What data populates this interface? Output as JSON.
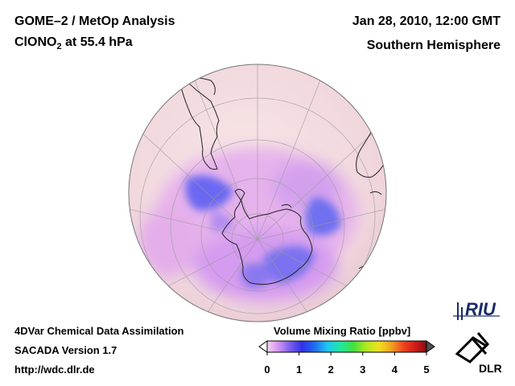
{
  "header": {
    "title": "GOME–2 / MetOp Analysis",
    "species": "ClONO",
    "species_sub": "2",
    "level": "at 55.4 hPa",
    "datetime": "Jan 28, 2010, 12:00 GMT",
    "region": "Southern Hemisphere"
  },
  "footer": {
    "line1": "4DVar Chemical Data Assimilation",
    "line2": "SACADA Version 1.7",
    "line3": "http://wdc.dlr.de"
  },
  "colorbar": {
    "title": "Volume Mixing Ratio [ppbv]",
    "ticks": [
      "0",
      "1",
      "2",
      "3",
      "4",
      "5"
    ],
    "min": 0,
    "max": 5
  },
  "logos": {
    "riu": "RIU",
    "dlr": "DLR"
  },
  "colors": {
    "low": "#f7dede",
    "mid": "#d998e8",
    "high": "#6060f0",
    "coast": "#222222"
  }
}
